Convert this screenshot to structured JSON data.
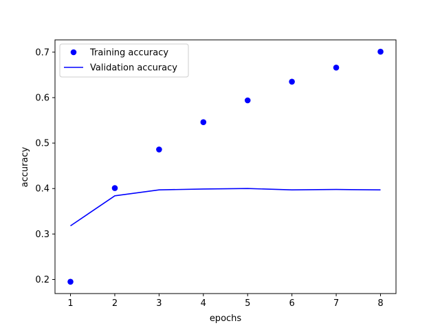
{
  "chart_data": {
    "type": "line",
    "title": "",
    "xlabel": "epochs",
    "ylabel": "accuracy",
    "xlim": [
      0.65,
      8.35
    ],
    "ylim": [
      0.169,
      0.727
    ],
    "x_ticks": [
      1,
      2,
      3,
      4,
      5,
      6,
      7,
      8
    ],
    "y_ticks": [
      0.2,
      0.3,
      0.4,
      0.5,
      0.6,
      0.7
    ],
    "x_tick_labels": [
      "1",
      "2",
      "3",
      "4",
      "5",
      "6",
      "7",
      "8"
    ],
    "y_tick_labels": [
      "0.2",
      "0.3",
      "0.4",
      "0.5",
      "0.6",
      "0.7"
    ],
    "grid": false,
    "legend_position": "top-left",
    "x": [
      1,
      2,
      3,
      4,
      5,
      6,
      7,
      8
    ],
    "series": [
      {
        "name": "Training accuracy",
        "style": "markers",
        "color": "#0000ff",
        "values": [
          0.195,
          0.401,
          0.486,
          0.546,
          0.594,
          0.635,
          0.666,
          0.701
        ]
      },
      {
        "name": "Validation accuracy",
        "style": "line",
        "color": "#0000ff",
        "values": [
          0.318,
          0.384,
          0.397,
          0.399,
          0.4,
          0.397,
          0.398,
          0.397
        ]
      }
    ]
  }
}
